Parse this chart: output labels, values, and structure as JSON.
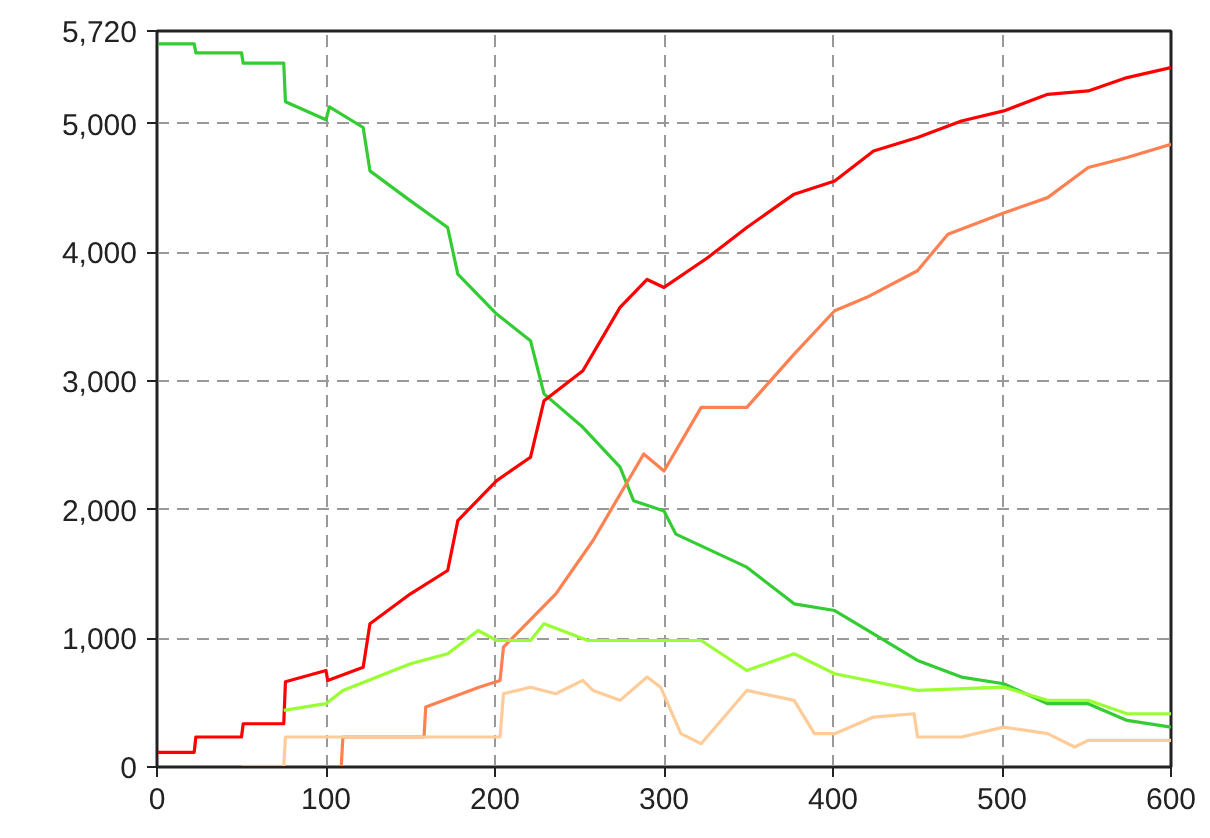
{
  "chart_data": {
    "type": "line",
    "xlim": [
      0,
      600
    ],
    "ylim": [
      0,
      5720
    ],
    "xticks": [
      0,
      100,
      200,
      300,
      400,
      500,
      600
    ],
    "yticks": [
      0,
      {
        "value": 1000,
        "label": "1,000"
      },
      {
        "value": 2000,
        "label": "2,000"
      },
      {
        "value": 3000,
        "label": "3,000"
      },
      {
        "value": 4000,
        "label": "4,000"
      },
      {
        "value": 5000,
        "label": "5,000"
      },
      {
        "value": 5720,
        "label": "5,720"
      }
    ],
    "grid": true,
    "line_style": "solid",
    "series": [
      {
        "color": "#33cc33",
        "x": [
          0,
          22,
          23,
          50,
          51,
          75,
          76,
          100,
          102,
          122,
          126,
          150,
          172,
          178,
          201,
          221,
          229,
          252,
          274,
          282,
          300,
          307,
          349,
          377,
          401,
          424,
          450,
          476,
          501,
          527,
          551,
          574,
          600
        ],
        "values": [
          5620,
          5620,
          5550,
          5550,
          5470,
          5470,
          5170,
          5030,
          5130,
          4970,
          4633,
          4400,
          4193,
          3830,
          3520,
          3313,
          2900,
          2640,
          2330,
          2070,
          1990,
          1810,
          1553,
          1268,
          1216,
          1035,
          828,
          699,
          647,
          492,
          492,
          362,
          310
        ]
      },
      {
        "color": "#ff0000",
        "x": [
          0,
          22,
          23,
          50,
          51,
          75,
          76,
          100,
          101,
          122,
          126,
          150,
          172,
          178,
          201,
          221,
          229,
          252,
          274,
          290,
          300,
          326,
          349,
          377,
          401,
          424,
          450,
          476,
          501,
          527,
          551,
          574,
          600
        ],
        "values": [
          114,
          114,
          233,
          233,
          336,
          336,
          663,
          750,
          673,
          776,
          1113,
          1346,
          1527,
          1915,
          2226,
          2407,
          2847,
          3080,
          3572,
          3789,
          3727,
          3960,
          4193,
          4452,
          4555,
          4788,
          4892,
          5021,
          5099,
          5228,
          5254,
          5358,
          5435
        ]
      },
      {
        "color": "#ff8050",
        "x": [
          109,
          110,
          158,
          159,
          191,
          203,
          205,
          236,
          258,
          288,
          300,
          322,
          349,
          377,
          401,
          420,
          450,
          468,
          501,
          527,
          551,
          574,
          600
        ],
        "values": [
          0,
          233,
          233,
          466,
          621,
          673,
          932,
          1346,
          1760,
          2433,
          2300,
          2795,
          2795,
          3209,
          3546,
          3650,
          3857,
          4141,
          4306,
          4425,
          4659,
          4737,
          4840
        ]
      },
      {
        "color": "#99ff33",
        "x": [
          75,
          100,
          110,
          150,
          172,
          190,
          201,
          221,
          229,
          255,
          300,
          322,
          349,
          377,
          401,
          450,
          501,
          527,
          551,
          574,
          600
        ],
        "values": [
          440,
          492,
          595,
          802,
          880,
          1061,
          983,
          983,
          1113,
          983,
          983,
          983,
          750,
          880,
          725,
          595,
          621,
          518,
          518,
          414,
          414
        ]
      },
      {
        "color": "#ffcc99",
        "x": [
          50,
          75,
          76,
          203,
          205,
          221,
          236,
          252,
          258,
          274,
          290,
          298,
          310,
          322,
          349,
          377,
          389,
          401,
          424,
          448,
          450,
          476,
          501,
          527,
          543,
          551,
          600
        ],
        "values": [
          0,
          0,
          233,
          233,
          569,
          620,
          569,
          673,
          595,
          518,
          699,
          620,
          259,
          181,
          595,
          518,
          259,
          259,
          388,
          414,
          233,
          233,
          310,
          259,
          155,
          207,
          207
        ]
      }
    ]
  }
}
